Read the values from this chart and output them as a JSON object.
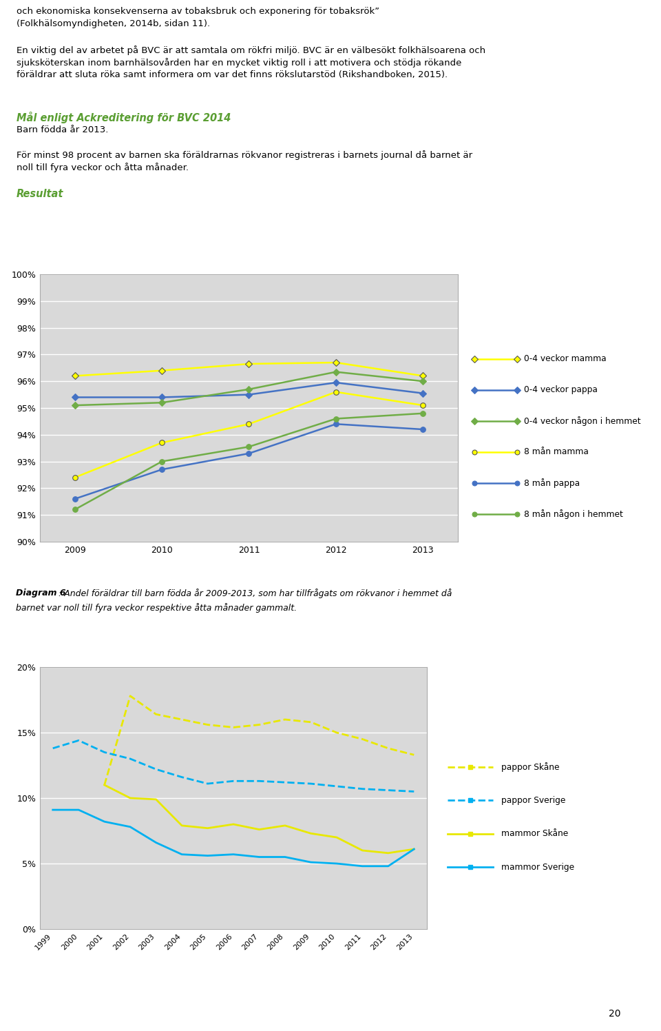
{
  "text_lines": [
    {
      "text": "och ekonomiska konsekvenserna av tobaksbruk och exponering för tobaksrök”",
      "style": "normal"
    },
    {
      "text": "(Folkhälsomyndigheten, 2014b, sidan 11).",
      "style": "normal"
    },
    {
      "text": "",
      "style": "blank"
    },
    {
      "text": "En viktig del av arbetet på BVC är att samtala om rökfri miljö. BVC är en välbesökt folkhälsoarena och",
      "style": "normal"
    },
    {
      "text": "sjuksköterskan inom barnhälsovården har en mycket viktig roll i att motivera och stödja rökande",
      "style": "normal"
    },
    {
      "text": "föräldrar att sluta röka samt informera om var det finns rökslutarstöd (Rikshandboken, 2015).",
      "style": "normal"
    },
    {
      "text": "",
      "style": "blank"
    },
    {
      "text": "",
      "style": "blank"
    },
    {
      "text": "Mål enligt Ackreditering för BVC 2014",
      "style": "green_bold_italic"
    },
    {
      "text": "Barn födda år 2013.",
      "style": "normal"
    },
    {
      "text": "",
      "style": "blank"
    },
    {
      "text": "För minst 98 procent av barnen ska föräldrarnas rökvanor registreras i barnets journal då barnet är",
      "style": "normal"
    },
    {
      "text": "noll till fyra veckor och åtta månader.",
      "style": "normal"
    },
    {
      "text": "",
      "style": "blank"
    },
    {
      "text": "Resultat",
      "style": "green_bold_italic"
    }
  ],
  "chart1": {
    "years": [
      2009,
      2010,
      2011,
      2012,
      2013
    ],
    "series": [
      {
        "name": "0-4 veckor mamma",
        "values": [
          96.2,
          96.4,
          96.65,
          96.7,
          96.2
        ],
        "color": "#ffff00",
        "marker": "D",
        "ls": "-",
        "lw": 1.8
      },
      {
        "name": "0-4 veckor pappa",
        "values": [
          95.4,
          95.4,
          95.5,
          95.95,
          95.55
        ],
        "color": "#4472c4",
        "marker": "D",
        "ls": "-",
        "lw": 1.8
      },
      {
        "name": "0-4 veckor någon i hemmet",
        "values": [
          95.1,
          95.2,
          95.7,
          96.35,
          96.0
        ],
        "color": "#70ad47",
        "marker": "D",
        "ls": "-",
        "lw": 1.8
      },
      {
        "name": "8 mån mamma",
        "values": [
          92.4,
          93.7,
          94.4,
          95.6,
          95.1
        ],
        "color": "#ffff00",
        "marker": "o",
        "ls": "-",
        "lw": 1.8
      },
      {
        "name": "8 mån pappa",
        "values": [
          91.6,
          92.7,
          93.3,
          94.4,
          94.2
        ],
        "color": "#4472c4",
        "marker": "o",
        "ls": "-",
        "lw": 1.8
      },
      {
        "name": "8 mån någon i hemmet",
        "values": [
          91.2,
          93.0,
          93.55,
          94.6,
          94.8
        ],
        "color": "#70ad47",
        "marker": "o",
        "ls": "-",
        "lw": 1.8
      }
    ],
    "ylim": [
      90,
      100
    ],
    "yticks": [
      90,
      91,
      92,
      93,
      94,
      95,
      96,
      97,
      98,
      99,
      100
    ],
    "ytick_labels": [
      "90%",
      "91%",
      "92%",
      "93%",
      "94%",
      "95%",
      "96%",
      "97%",
      "98%",
      "99%",
      "100%"
    ],
    "bg_color": "#d9d9d9",
    "border_color": "#aaaaaa"
  },
  "chart1_caption_bold": "Diagram 6",
  "chart1_caption_rest": ": Andel föräldrar till barn födda år 2009-2013, som har tillfrågats om rökvanor i hemmet då",
  "chart1_caption_line2": "barnet var noll till fyra veckor respektive åtta månader gammalt.",
  "chart2": {
    "years": [
      1999,
      2000,
      2001,
      2002,
      2003,
      2004,
      2005,
      2006,
      2007,
      2008,
      2009,
      2010,
      2011,
      2012,
      2013
    ],
    "series": [
      {
        "name": "pappor Skåne",
        "values": [
          null,
          null,
          11.0,
          17.8,
          16.4,
          16.0,
          15.6,
          15.4,
          15.6,
          16.0,
          15.8,
          15.0,
          14.5,
          13.8,
          13.3
        ],
        "color": "#e8e800",
        "ls": "--",
        "lw": 2.0
      },
      {
        "name": "pappor Sverige",
        "values": [
          13.8,
          14.4,
          13.5,
          13.0,
          12.2,
          11.6,
          11.1,
          11.3,
          11.3,
          11.2,
          11.1,
          10.9,
          10.7,
          10.6,
          10.5
        ],
        "color": "#00b0f0",
        "ls": "--",
        "lw": 2.0
      },
      {
        "name": "mammor Skåne",
        "values": [
          null,
          null,
          11.0,
          10.0,
          9.9,
          7.9,
          7.7,
          8.0,
          7.6,
          7.9,
          7.3,
          7.0,
          6.0,
          5.8,
          6.1
        ],
        "color": "#e8e800",
        "ls": "-",
        "lw": 2.0
      },
      {
        "name": "mammor Sverige",
        "values": [
          9.1,
          9.1,
          8.2,
          7.8,
          6.6,
          5.7,
          5.6,
          5.7,
          5.5,
          5.5,
          5.1,
          5.0,
          4.8,
          4.8,
          6.1
        ],
        "color": "#00b0f0",
        "ls": "-",
        "lw": 2.0
      }
    ],
    "ylim": [
      0,
      20
    ],
    "yticks": [
      0,
      5,
      10,
      15,
      20
    ],
    "ytick_labels": [
      "0%",
      "5%",
      "10%",
      "15%",
      "20%"
    ],
    "bg_color": "#d9d9d9",
    "border_color": "#aaaaaa"
  },
  "green_color": "#5a9e32",
  "text_fontsize": 9.5,
  "green_fontsize": 10.5,
  "page_number": "20"
}
